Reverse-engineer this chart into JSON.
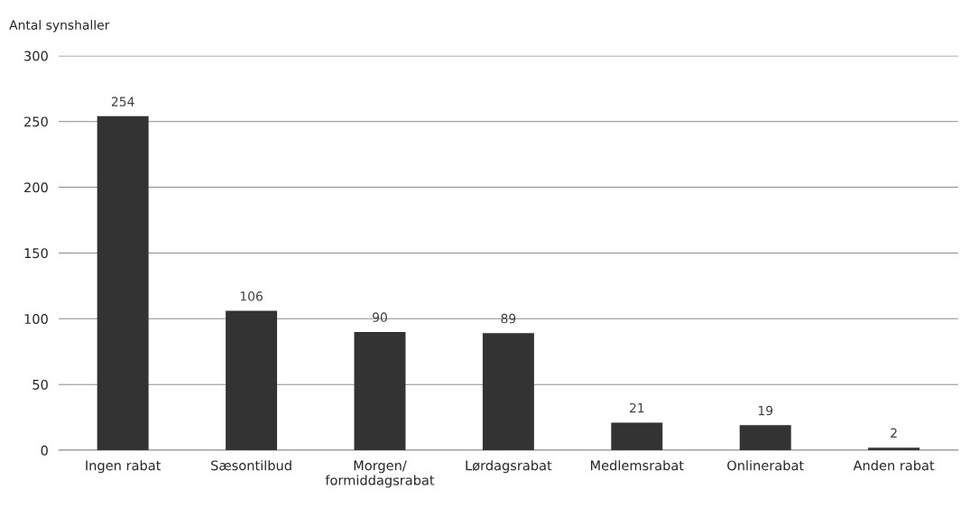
{
  "chart_data": {
    "type": "bar",
    "ylabel": "Antal synshaller",
    "categories": [
      "Ingen rabat",
      "Sæsontilbud",
      "Morgen/\nformiddagsrabat",
      "Lørdagsrabat",
      "Medlemsrabat",
      "Onlinerabat",
      "Anden rabat"
    ],
    "values": [
      254,
      106,
      90,
      89,
      21,
      19,
      2
    ],
    "color": "#333333",
    "ylim": [
      0,
      300
    ],
    "yticks": [
      0,
      50,
      100,
      150,
      200,
      250,
      300
    ],
    "grid": "y",
    "data_labels": true
  }
}
